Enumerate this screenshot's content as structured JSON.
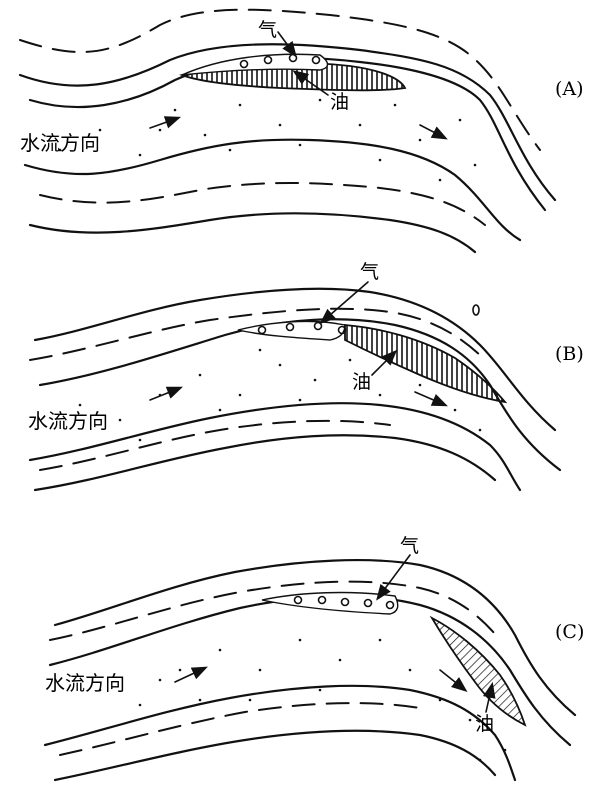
{
  "panels": [
    {
      "id": "A",
      "label": "(A)",
      "flow_label": "水流方向",
      "gas_label": "气",
      "oil_label": "油"
    },
    {
      "id": "B",
      "label": "(B)",
      "flow_label": "水流方向",
      "gas_label": "气",
      "oil_label": "油"
    },
    {
      "id": "C",
      "label": "(C)",
      "flow_label": "水流方向",
      "gas_label": "气",
      "oil_label": "油"
    }
  ]
}
